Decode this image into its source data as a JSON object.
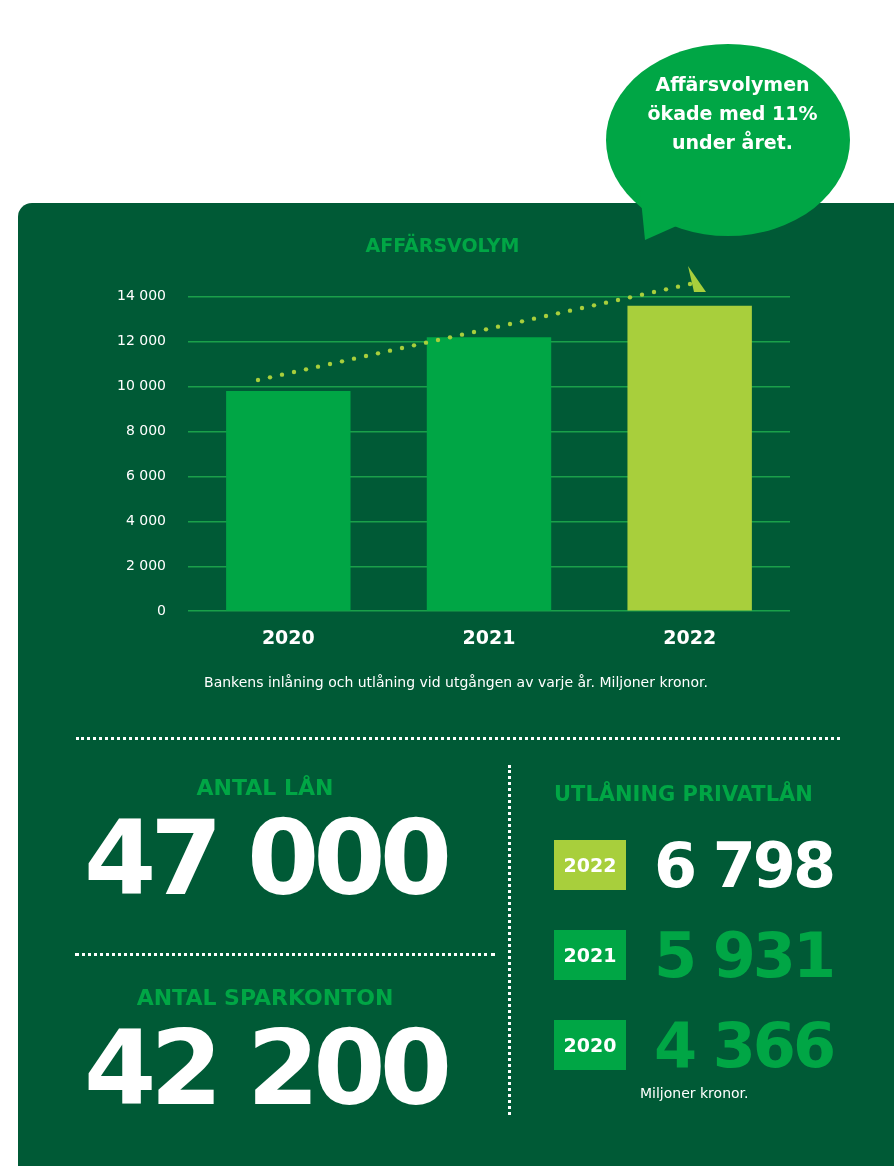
{
  "chart_data": [
    {
      "type": "bar",
      "title": "AFFÄRSVOLYM",
      "categories": [
        "2020",
        "2021",
        "2022"
      ],
      "values": [
        9800,
        12200,
        13600
      ],
      "colors": [
        "#00a645",
        "#00a645",
        "#a8cf3c"
      ],
      "ylim": [
        0,
        14000
      ],
      "yticks": [
        {
          "value": 0,
          "label": "0"
        },
        {
          "value": 2000,
          "label": "2 000"
        },
        {
          "value": 4000,
          "label": "4 000"
        },
        {
          "value": 6000,
          "label": "6 000"
        },
        {
          "value": 8000,
          "label": "8 000"
        },
        {
          "value": 10000,
          "label": "10 000"
        },
        {
          "value": 12000,
          "label": "12 000"
        },
        {
          "value": 14000,
          "label": "14 000"
        }
      ],
      "grid": "y",
      "legend": false,
      "annotations": [
        "Affärsvolymen ökade med 11% under året.",
        "Bankens inlåning och utlåning vid utgången av varje år. Miljoner kronor."
      ]
    },
    {
      "type": "other",
      "categories": [
        "ANTAL LÅN",
        "ANTAL SPARKONTON"
      ],
      "values": [
        47000,
        42200
      ],
      "value_labels": [
        "47 000",
        "42 200"
      ]
    },
    {
      "type": "other",
      "title": "UTLÅNING PRIVATLÅN",
      "categories": [
        "2022",
        "2021",
        "2020"
      ],
      "values": [
        6798,
        5931,
        4366
      ],
      "value_labels": [
        "6 798",
        "5 931",
        "4 366"
      ],
      "colors": [
        "#a8cf3c",
        "#00a645",
        "#00a645"
      ],
      "annotations": [
        "Miljoner kronor."
      ]
    }
  ]
}
